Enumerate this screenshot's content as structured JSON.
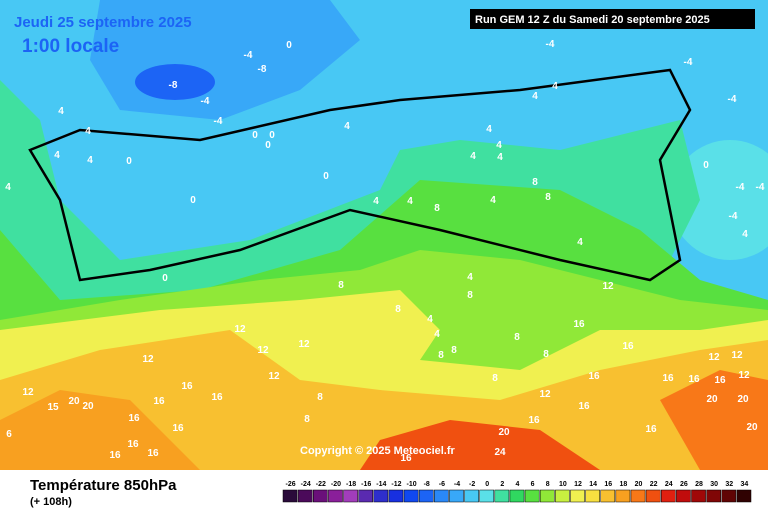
{
  "header": {
    "date": "Jeudi 25 septembre 2025",
    "time": "1:00 locale",
    "run": "Run GEM 12 Z du Samedi 20 septembre 2025"
  },
  "copyright": "Copyright © 2025 Meteociel.fr",
  "footer": {
    "title": "Température 850hPa",
    "lead": "(+ 108h)"
  },
  "legend": {
    "ticks": [
      -26,
      -24,
      -22,
      -20,
      -18,
      -16,
      -14,
      -12,
      -10,
      -8,
      -6,
      -4,
      -2,
      0,
      2,
      4,
      6,
      8,
      10,
      12,
      14,
      16,
      18,
      20,
      22,
      24,
      26,
      28,
      30,
      32,
      34
    ],
    "colors": [
      "#2a0a3a",
      "#4b0a5a",
      "#6a0f7a",
      "#8a1f9a",
      "#a23dbb",
      "#5a2ab0",
      "#2e2ecc",
      "#1830e0",
      "#1048f0",
      "#1c64f5",
      "#2a88f8",
      "#38a8f8",
      "#48c8f4",
      "#5ae0e8",
      "#40e0a0",
      "#30d860",
      "#58e040",
      "#90e838",
      "#c8f040",
      "#f0f050",
      "#f8e040",
      "#f8c030",
      "#f8a020",
      "#f87818",
      "#f05010",
      "#e02010",
      "#c00c0c",
      "#a00808",
      "#800606",
      "#600404",
      "#300202"
    ]
  },
  "contour_labels": [
    -8,
    -4,
    -8,
    -4,
    -4,
    0,
    0,
    0,
    0,
    4,
    0,
    0,
    0,
    0,
    4,
    4,
    4,
    4,
    4,
    4,
    4,
    8,
    4,
    4,
    4,
    4,
    4,
    4,
    4,
    -4,
    -4,
    -4,
    0,
    -4,
    -4,
    -4,
    4,
    8,
    8,
    4,
    8,
    8,
    12,
    12,
    12,
    12,
    12,
    12,
    15,
    20,
    20,
    6,
    16,
    16,
    16,
    16,
    16,
    16,
    16,
    16,
    16,
    8,
    8,
    12,
    16,
    20,
    24,
    16,
    16,
    16,
    16,
    12,
    12,
    12,
    20,
    20,
    20,
    12,
    16,
    16,
    16,
    16,
    8,
    8,
    8,
    8,
    8,
    8,
    4,
    4,
    4
  ]
}
